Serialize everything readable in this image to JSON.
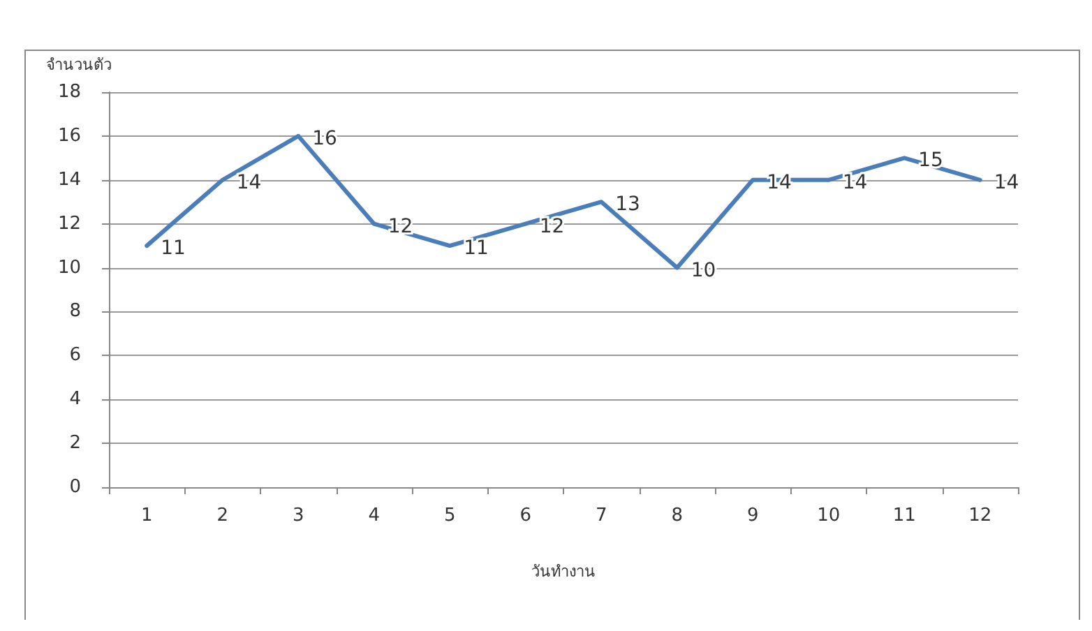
{
  "chart_data": {
    "type": "line",
    "ylabel": "จำนวนตัว",
    "xlabel": "วันทำงาน",
    "categories": [
      "1",
      "2",
      "3",
      "4",
      "5",
      "6",
      "7",
      "8",
      "9",
      "10",
      "11",
      "12"
    ],
    "series": [
      {
        "color": "#4a7ebb",
        "values": [
          11,
          14,
          16,
          12,
          11,
          12,
          13,
          10,
          14,
          14,
          15,
          14
        ]
      }
    ],
    "ylim": [
      0,
      18
    ],
    "yticks": [
      0,
      2,
      4,
      6,
      8,
      10,
      12,
      14,
      16,
      18
    ],
    "grid": "y",
    "data_labels": true,
    "marker": "none",
    "line_style": "solid"
  }
}
